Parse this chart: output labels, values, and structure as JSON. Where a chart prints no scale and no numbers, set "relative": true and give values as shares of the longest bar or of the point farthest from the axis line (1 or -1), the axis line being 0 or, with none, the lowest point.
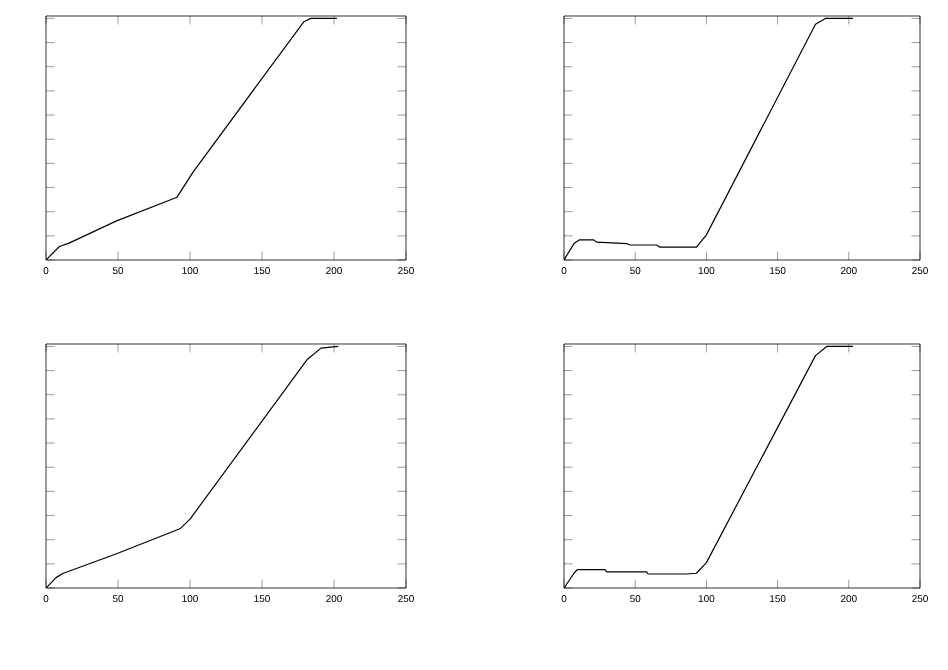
{
  "chart_data": [
    {
      "type": "line",
      "relative": true,
      "tick_labels": "x",
      "xlim": [
        0,
        250
      ],
      "xticks": [
        0,
        50,
        100,
        150,
        200,
        250
      ],
      "color": "#000000",
      "x": [
        0,
        9.3,
        16,
        49,
        91,
        102,
        179,
        184,
        202
      ],
      "values": [
        0,
        0.056,
        0.07,
        0.162,
        0.26,
        0.363,
        0.986,
        1,
        1
      ]
    },
    {
      "type": "line",
      "relative": true,
      "tick_labels": "x",
      "xlim": [
        0,
        250
      ],
      "xticks": [
        0,
        50,
        100,
        150,
        200,
        250
      ],
      "color": "#000000",
      "x": [
        0,
        7,
        10.7,
        20.9,
        23,
        44,
        46.5,
        65,
        67.4,
        93,
        100,
        176.6,
        183.6,
        203
      ],
      "values": [
        0,
        0.068,
        0.083,
        0.083,
        0.074,
        0.068,
        0.062,
        0.062,
        0.053,
        0.053,
        0.104,
        0.976,
        1,
        1
      ]
    },
    {
      "type": "line",
      "relative": true,
      "tick_labels": "x",
      "xlim": [
        0,
        250
      ],
      "xticks": [
        0,
        50,
        100,
        150,
        200,
        250
      ],
      "color": "#000000",
      "x": [
        0,
        7,
        11.6,
        49,
        93,
        100,
        181.6,
        191,
        203
      ],
      "values": [
        0,
        0.043,
        0.06,
        0.142,
        0.245,
        0.285,
        0.947,
        0.993,
        1
      ]
    },
    {
      "type": "line",
      "relative": true,
      "tick_labels": "x",
      "xlim": [
        0,
        250
      ],
      "xticks": [
        0,
        50,
        100,
        150,
        200,
        250
      ],
      "color": "#000000",
      "x": [
        0,
        7,
        9.3,
        28.8,
        30,
        58,
        59,
        86,
        93,
        100,
        176.6,
        184.5,
        203
      ],
      "values": [
        0,
        0.061,
        0.076,
        0.076,
        0.067,
        0.067,
        0.058,
        0.058,
        0.061,
        0.105,
        0.962,
        1,
        1
      ]
    }
  ]
}
